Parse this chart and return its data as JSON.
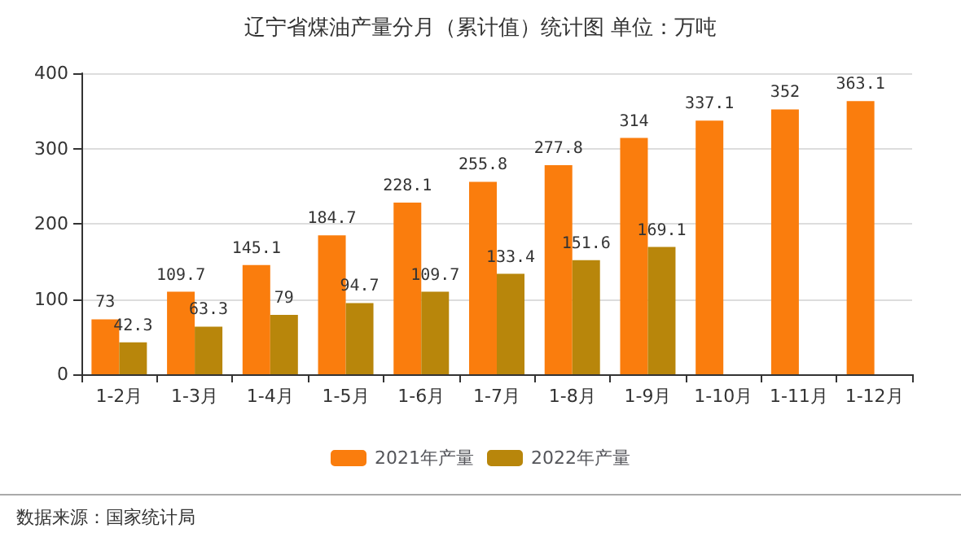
{
  "chart_data": {
    "type": "bar",
    "title": "辽宁省煤油产量分月（累计值）统计图 单位：万吨",
    "categories": [
      "1-2月",
      "1-3月",
      "1-4月",
      "1-5月",
      "1-6月",
      "1-7月",
      "1-8月",
      "1-9月",
      "1-10月",
      "1-11月",
      "1-12月"
    ],
    "series": [
      {
        "name": "2021年产量",
        "color": "#fa7d0d",
        "values": [
          73,
          109.7,
          145.1,
          184.7,
          228.1,
          255.8,
          277.8,
          314,
          337.1,
          352,
          363.1
        ]
      },
      {
        "name": "2022年产量",
        "color": "#b8860b",
        "values": [
          42.3,
          63.3,
          79,
          94.7,
          109.7,
          133.4,
          151.6,
          169.1,
          null,
          null,
          null
        ]
      }
    ],
    "ylim": [
      0,
      400
    ],
    "yticks": [
      0,
      100,
      200,
      300,
      400
    ],
    "grid": "y",
    "legend": "bottom",
    "data_labels": true,
    "annotations": [
      "数据来源：国家统计局"
    ]
  }
}
